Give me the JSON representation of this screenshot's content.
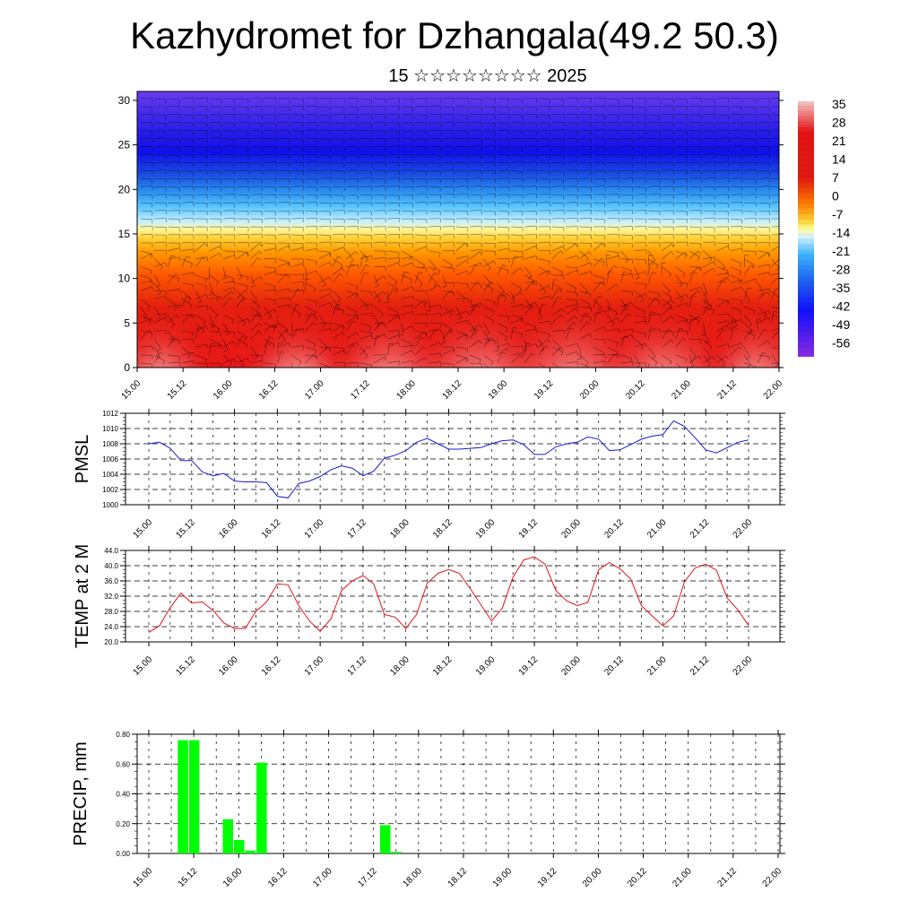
{
  "page": {
    "title": "Kazhydromet for Dzhangala(49.2 50.3)",
    "subtitle": "15 ☆☆☆☆☆☆☆☆ 2025"
  },
  "colors": {
    "pmsl_line": "#1a1ad6",
    "temp_line": "#e0141e",
    "precip_bar": "#00ff00",
    "colorbar": [
      "#f6c6c6",
      "#e41414",
      "#ff8c00",
      "#ffff66",
      "#a6e6ff",
      "#1ea0ff",
      "#1414ff",
      "#8a2be2"
    ]
  },
  "chart_data": [
    {
      "type": "heatmap",
      "name": "cross-section",
      "x_ticks": [
        "15.00",
        "15.12",
        "16.00",
        "16.12",
        "17.00",
        "17.12",
        "18.00",
        "18.12",
        "19.00",
        "19.12",
        "20.00",
        "20.12",
        "21.00",
        "21.12",
        "22.00"
      ],
      "y_ticks": [
        0,
        5,
        10,
        15,
        20,
        25,
        30
      ],
      "ylim": [
        0,
        31
      ],
      "colorbar_labels": [
        "35",
        "28",
        "21",
        "14",
        "7",
        "0",
        "-7",
        "-14",
        "-21",
        "-28",
        "-35",
        "-42",
        "-49",
        "-56"
      ],
      "overlay": "wind barbs"
    },
    {
      "type": "line",
      "ylabel": "PMSL",
      "x_ticks": [
        "15.00",
        "15.12",
        "16.00",
        "16.12",
        "17.00",
        "17.12",
        "18.00",
        "18.12",
        "19.00",
        "19.12",
        "20.00",
        "20.12",
        "21.00",
        "21.12",
        "22.00"
      ],
      "y_ticks": [
        "1000",
        "1002",
        "1004",
        "1006",
        "1008",
        "1010",
        "1012"
      ],
      "ylim": [
        1000,
        1012
      ],
      "x": [
        0,
        3,
        6,
        9,
        12,
        15,
        18,
        21,
        24,
        27,
        30,
        33,
        36,
        39,
        42,
        45,
        48,
        51,
        54,
        57,
        60,
        63,
        66,
        69,
        72,
        75,
        78,
        81,
        84,
        87,
        90,
        93,
        96,
        99,
        102,
        105,
        108,
        111,
        114,
        117,
        120,
        123,
        126,
        129,
        132,
        135,
        138,
        141,
        144,
        147,
        150,
        153,
        156,
        159,
        162,
        165,
        168
      ],
      "values": [
        1008.0,
        1008.2,
        1007.4,
        1005.8,
        1005.8,
        1004.3,
        1003.8,
        1004.1,
        1003.1,
        1003.0,
        1003.0,
        1002.9,
        1001.1,
        1000.9,
        1002.8,
        1003.1,
        1003.7,
        1004.6,
        1005.1,
        1004.8,
        1003.8,
        1004.4,
        1006.1,
        1006.5,
        1007.1,
        1008.2,
        1008.7,
        1008.0,
        1007.3,
        1007.3,
        1007.4,
        1007.5,
        1008.0,
        1008.4,
        1008.5,
        1007.9,
        1006.6,
        1006.6,
        1007.6,
        1008.0,
        1008.2,
        1008.9,
        1008.6,
        1007.1,
        1007.2,
        1007.9,
        1008.6,
        1009.0,
        1009.2,
        1011.0,
        1010.3,
        1008.8,
        1007.2,
        1006.8,
        1007.5,
        1008.2,
        1008.5
      ]
    },
    {
      "type": "line",
      "ylabel": "TEMP at 2 M",
      "x_ticks": [
        "15.00",
        "15.12",
        "16.00",
        "16.12",
        "17.00",
        "17.12",
        "18.00",
        "18.12",
        "19.00",
        "19.12",
        "20.00",
        "20.12",
        "21.00",
        "21.12",
        "22.00"
      ],
      "y_ticks": [
        "20.0",
        "24.0",
        "28.0",
        "32.0",
        "36.0",
        "40.0",
        "44.0"
      ],
      "ylim": [
        20,
        44
      ],
      "x": [
        0,
        3,
        6,
        9,
        12,
        15,
        18,
        21,
        24,
        27,
        30,
        33,
        36,
        39,
        42,
        45,
        48,
        51,
        54,
        57,
        60,
        63,
        66,
        69,
        72,
        75,
        78,
        81,
        84,
        87,
        90,
        93,
        96,
        99,
        102,
        105,
        108,
        111,
        114,
        117,
        120,
        123,
        126,
        129,
        132,
        135,
        138,
        141,
        144,
        147,
        150,
        153,
        156,
        159,
        162,
        165,
        168
      ],
      "values": [
        22.5,
        24.2,
        29.0,
        32.8,
        30.2,
        30.5,
        28.2,
        25.0,
        23.5,
        23.5,
        28.0,
        30.5,
        35.2,
        35.0,
        29.5,
        25.5,
        22.8,
        26.0,
        33.5,
        36.0,
        37.4,
        35.2,
        27.2,
        26.5,
        23.5,
        27.2,
        35.4,
        38.0,
        39.0,
        38.0,
        34.0,
        29.8,
        25.5,
        28.8,
        37.0,
        41.5,
        42.3,
        40.4,
        33.5,
        30.8,
        29.5,
        30.4,
        39.0,
        40.8,
        39.2,
        36.5,
        29.5,
        26.8,
        24.2,
        26.8,
        35.7,
        39.4,
        40.4,
        38.8,
        31.5,
        28.4,
        24.3
      ]
    },
    {
      "type": "bar",
      "ylabel": "PRECIP, mm",
      "x_ticks": [
        "15.00",
        "15.12",
        "16.00",
        "16.12",
        "17.00",
        "17.12",
        "18.00",
        "18.12",
        "19.00",
        "19.12",
        "20.00",
        "20.12",
        "21.00",
        "21.12",
        "22.00"
      ],
      "y_ticks": [
        "0.00",
        "0.20",
        "0.40",
        "0.60",
        "0.80"
      ],
      "ylim": [
        0,
        0.8
      ],
      "x": [
        9,
        12,
        21,
        24,
        27,
        30,
        63,
        66
      ],
      "values": [
        0.76,
        0.76,
        0.23,
        0.09,
        0.02,
        0.61,
        0.19,
        0.01
      ]
    }
  ]
}
